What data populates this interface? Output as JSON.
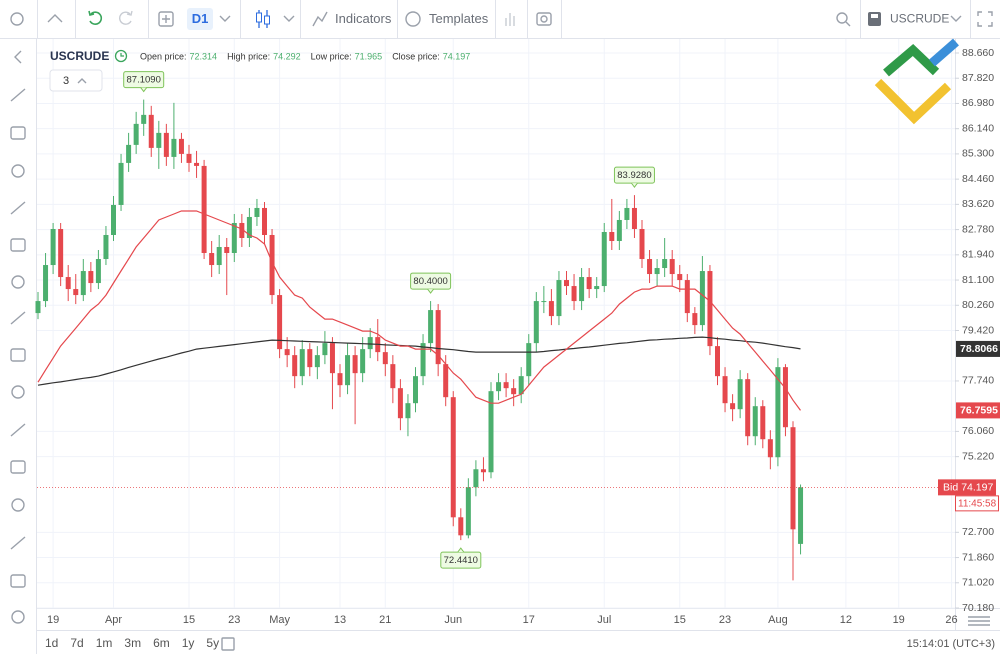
{
  "toolbar": {
    "timeframe": "D1",
    "indicators": "Indicators",
    "templates": "Templates",
    "symbol": "USCRUDE"
  },
  "footer": {
    "ranges": [
      "1d",
      "7d",
      "1m",
      "3m",
      "6m",
      "1y",
      "5y"
    ],
    "clock": "15:14:01 (UTC+3)"
  },
  "chart_data": {
    "type": "candlestick",
    "title": "USCRUDE",
    "depth": "3",
    "ohlc_labels": [
      "Open price:",
      "High price:",
      "Low price:",
      "Close price:"
    ],
    "up_color": "#4caf6e",
    "down_color": "#e5484d",
    "bid_label": "Bid",
    "countdown": "11:45:58",
    "ylim": [
      70.18,
      88.66
    ],
    "yticks": [
      {
        "value": 88.66,
        "label": "88.660"
      },
      {
        "value": 87.82,
        "label": "87.820"
      },
      {
        "value": 86.98,
        "label": "86.980"
      },
      {
        "value": 86.14,
        "label": "86.140"
      },
      {
        "value": 85.3,
        "label": "85.300"
      },
      {
        "value": 84.46,
        "label": "84.460"
      },
      {
        "value": 83.62,
        "label": "83.620"
      },
      {
        "value": 82.78,
        "label": "82.780"
      },
      {
        "value": 81.94,
        "label": "81.940"
      },
      {
        "value": 81.1,
        "label": "81.100"
      },
      {
        "value": 80.26,
        "label": "80.260"
      },
      {
        "value": 79.42,
        "label": "79.420"
      },
      {
        "value": 77.74,
        "label": "77.740"
      },
      {
        "value": 76.06,
        "label": "76.060"
      },
      {
        "value": 75.22,
        "label": "75.220"
      },
      {
        "value": 72.7,
        "label": "72.700"
      },
      {
        "value": 71.86,
        "label": "71.860"
      },
      {
        "value": 71.02,
        "label": "71.020"
      },
      {
        "value": 70.18,
        "label": "70.180"
      }
    ],
    "categories": [
      null,
      null,
      "19",
      null,
      null,
      null,
      null,
      null,
      null,
      null,
      "Apr",
      null,
      null,
      null,
      null,
      null,
      null,
      null,
      null,
      null,
      "15",
      null,
      null,
      null,
      null,
      null,
      "23",
      null,
      null,
      null,
      null,
      null,
      "May",
      null,
      null,
      null,
      null,
      null,
      null,
      null,
      "13",
      null,
      null,
      null,
      null,
      null,
      "21",
      null,
      null,
      null,
      null,
      null,
      null,
      null,
      null,
      "Jun",
      null,
      null,
      null,
      null,
      null,
      null,
      null,
      null,
      null,
      "17",
      null,
      null,
      null,
      null,
      null,
      null,
      null,
      null,
      null,
      "Jul",
      null,
      null,
      null,
      null,
      null,
      null,
      null,
      null,
      null,
      "15",
      null,
      null,
      null,
      null,
      null,
      "23",
      null,
      null,
      null,
      null,
      null,
      null,
      "Aug",
      null,
      null,
      null
    ],
    "future_categories": [
      "12",
      "19",
      "26"
    ],
    "candles": [
      [
        80.0,
        80.7,
        79.8,
        80.4
      ],
      [
        80.4,
        82.0,
        80.2,
        81.6
      ],
      [
        81.6,
        83.0,
        81.3,
        82.8
      ],
      [
        82.8,
        83.0,
        80.9,
        81.2
      ],
      [
        81.2,
        81.6,
        80.4,
        80.8
      ],
      [
        80.8,
        81.3,
        80.3,
        80.6
      ],
      [
        80.6,
        81.8,
        80.4,
        81.4
      ],
      [
        81.4,
        81.7,
        80.7,
        81.0
      ],
      [
        81.0,
        82.1,
        80.8,
        81.8
      ],
      [
        81.8,
        82.9,
        81.6,
        82.6
      ],
      [
        82.6,
        83.9,
        82.4,
        83.6
      ],
      [
        83.6,
        85.3,
        83.4,
        85.0
      ],
      [
        85.0,
        86.0,
        84.7,
        85.6
      ],
      [
        85.6,
        86.7,
        85.3,
        86.3
      ],
      [
        86.3,
        87.109,
        85.9,
        86.6
      ],
      [
        86.6,
        86.9,
        85.2,
        85.5
      ],
      [
        85.5,
        86.4,
        84.8,
        86.0
      ],
      [
        86.0,
        86.3,
        84.9,
        85.2
      ],
      [
        85.2,
        87.0,
        84.8,
        85.8
      ],
      [
        85.8,
        86.0,
        85.0,
        85.3
      ],
      [
        85.3,
        85.6,
        84.7,
        85.0
      ],
      [
        85.0,
        85.4,
        84.5,
        84.9
      ],
      [
        84.9,
        85.1,
        81.8,
        82.0
      ],
      [
        82.0,
        82.4,
        81.2,
        81.6
      ],
      [
        81.6,
        82.6,
        81.3,
        82.2
      ],
      [
        82.2,
        82.5,
        80.6,
        82.0
      ],
      [
        82.0,
        83.3,
        81.7,
        83.0
      ],
      [
        83.0,
        83.3,
        82.2,
        82.5
      ],
      [
        82.5,
        83.5,
        82.2,
        83.2
      ],
      [
        83.2,
        83.8,
        82.9,
        83.5
      ],
      [
        83.5,
        83.7,
        82.3,
        82.6
      ],
      [
        82.6,
        82.8,
        80.3,
        80.6
      ],
      [
        80.6,
        80.8,
        78.5,
        78.8
      ],
      [
        78.8,
        79.2,
        78.2,
        78.6
      ],
      [
        78.6,
        78.9,
        77.5,
        77.9
      ],
      [
        77.9,
        79.1,
        77.6,
        78.8
      ],
      [
        78.8,
        79.0,
        77.9,
        78.2
      ],
      [
        78.2,
        78.9,
        77.8,
        78.6
      ],
      [
        78.6,
        79.4,
        78.3,
        79.0
      ],
      [
        79.0,
        79.2,
        76.8,
        78.0
      ],
      [
        78.0,
        78.3,
        77.2,
        77.6
      ],
      [
        77.6,
        79.0,
        77.3,
        78.6
      ],
      [
        78.6,
        78.9,
        76.3,
        78.0
      ],
      [
        78.0,
        79.2,
        77.7,
        78.8
      ],
      [
        78.8,
        79.5,
        78.5,
        79.2
      ],
      [
        79.2,
        79.8,
        78.4,
        78.7
      ],
      [
        78.7,
        79.0,
        77.9,
        78.3
      ],
      [
        78.3,
        78.6,
        77.0,
        77.5
      ],
      [
        77.5,
        77.8,
        76.1,
        76.5
      ],
      [
        76.5,
        77.3,
        75.9,
        77.0
      ],
      [
        77.0,
        78.2,
        76.7,
        77.9
      ],
      [
        77.9,
        79.3,
        77.6,
        79.0
      ],
      [
        79.0,
        80.4,
        78.7,
        80.1
      ],
      [
        80.1,
        80.3,
        77.9,
        78.3
      ],
      [
        78.3,
        78.6,
        76.9,
        77.2
      ],
      [
        77.2,
        77.4,
        72.9,
        73.2
      ],
      [
        73.2,
        73.5,
        72.441,
        72.6
      ],
      [
        72.6,
        74.5,
        72.5,
        74.2
      ],
      [
        74.2,
        75.1,
        73.9,
        74.8
      ],
      [
        74.8,
        75.2,
        74.4,
        74.7
      ],
      [
        74.7,
        77.7,
        74.5,
        77.4
      ],
      [
        77.4,
        78.0,
        77.1,
        77.7
      ],
      [
        77.7,
        78.0,
        77.2,
        77.5
      ],
      [
        77.5,
        77.8,
        76.9,
        77.3
      ],
      [
        77.3,
        78.2,
        77.0,
        77.9
      ],
      [
        77.9,
        79.3,
        77.6,
        79.0
      ],
      [
        79.0,
        80.7,
        78.7,
        80.4
      ],
      [
        80.4,
        80.9,
        80.0,
        80.4
      ],
      [
        80.4,
        80.8,
        79.6,
        79.9
      ],
      [
        79.9,
        81.4,
        79.6,
        81.1
      ],
      [
        81.1,
        81.4,
        80.6,
        80.9
      ],
      [
        80.9,
        81.3,
        80.1,
        80.4
      ],
      [
        80.4,
        81.5,
        80.1,
        81.2
      ],
      [
        81.2,
        81.5,
        80.5,
        80.8
      ],
      [
        80.8,
        81.2,
        80.5,
        80.9
      ],
      [
        80.9,
        83.0,
        80.7,
        82.7
      ],
      [
        82.7,
        83.8,
        82.1,
        82.4
      ],
      [
        82.4,
        83.4,
        82.1,
        83.1
      ],
      [
        83.1,
        83.8,
        82.8,
        83.5
      ],
      [
        83.5,
        83.928,
        82.5,
        82.8
      ],
      [
        82.8,
        83.1,
        81.5,
        81.8
      ],
      [
        81.8,
        82.1,
        81.0,
        81.3
      ],
      [
        81.3,
        81.8,
        80.9,
        81.5
      ],
      [
        81.5,
        82.5,
        81.2,
        81.8
      ],
      [
        81.8,
        82.1,
        80.9,
        81.3
      ],
      [
        81.3,
        81.6,
        80.7,
        81.1
      ],
      [
        81.1,
        81.3,
        79.7,
        80.0
      ],
      [
        80.0,
        80.2,
        79.3,
        79.6
      ],
      [
        79.6,
        81.9,
        79.4,
        81.4
      ],
      [
        81.4,
        81.6,
        78.6,
        78.9
      ],
      [
        78.9,
        79.2,
        77.6,
        77.9
      ],
      [
        77.9,
        78.2,
        76.7,
        77.0
      ],
      [
        77.0,
        77.3,
        76.4,
        76.8
      ],
      [
        76.8,
        78.1,
        76.5,
        77.8
      ],
      [
        77.8,
        78.0,
        75.6,
        75.9
      ],
      [
        75.9,
        77.2,
        75.6,
        76.9
      ],
      [
        76.9,
        77.1,
        75.5,
        75.8
      ],
      [
        75.8,
        76.1,
        74.8,
        75.2
      ],
      [
        75.2,
        78.5,
        74.9,
        78.2
      ],
      [
        78.2,
        78.3,
        75.9,
        76.2
      ],
      [
        76.2,
        76.4,
        71.1,
        72.8
      ],
      [
        72.314,
        74.292,
        71.965,
        74.197
      ]
    ],
    "series": [
      {
        "color": "#333333",
        "values": [
          77.6,
          77.64,
          77.68,
          77.71,
          77.75,
          77.79,
          77.83,
          77.86,
          77.9,
          77.97,
          78.04,
          78.11,
          78.19,
          78.26,
          78.33,
          78.4,
          78.47,
          78.53,
          78.6,
          78.67,
          78.73,
          78.8,
          78.83,
          78.86,
          78.89,
          78.92,
          78.95,
          78.98,
          79.01,
          79.04,
          79.07,
          79.1,
          79.09,
          79.08,
          79.07,
          79.06,
          79.05,
          79.04,
          79.03,
          79.02,
          79.01,
          79.0,
          78.99,
          78.98,
          78.97,
          78.96,
          78.94,
          78.93,
          78.92,
          78.91,
          78.9,
          78.87,
          78.85,
          78.82,
          78.8,
          78.78,
          78.75,
          78.72,
          78.7,
          78.7,
          78.7,
          78.7,
          78.7,
          78.7,
          78.7,
          78.7,
          78.7,
          78.72,
          78.75,
          78.77,
          78.8,
          78.82,
          78.85,
          78.87,
          78.9,
          78.93,
          78.96,
          78.99,
          79.01,
          79.04,
          79.07,
          79.1,
          79.11,
          79.13,
          79.14,
          79.16,
          79.17,
          79.19,
          79.2,
          79.18,
          79.15,
          79.13,
          79.1,
          79.08,
          79.05,
          79.03,
          79.0,
          78.96,
          78.92,
          78.88,
          78.85,
          78.8066
        ]
      },
      {
        "color": "#e5484d",
        "values": [
          77.7,
          78.1,
          78.5,
          78.9,
          79.2,
          79.5,
          79.8,
          80.1,
          80.3,
          80.6,
          81.0,
          81.4,
          81.8,
          82.2,
          82.5,
          82.8,
          83.1,
          83.2,
          83.3,
          83.4,
          83.4,
          83.4,
          83.3,
          83.2,
          83.1,
          83.0,
          82.9,
          82.8,
          82.6,
          82.5,
          82.3,
          81.7,
          81.2,
          80.9,
          80.6,
          80.5,
          80.2,
          80.0,
          79.8,
          79.8,
          79.7,
          79.6,
          79.5,
          79.4,
          79.4,
          79.3,
          79.1,
          79.0,
          78.9,
          78.9,
          78.8,
          78.8,
          78.8,
          78.6,
          78.3,
          78.0,
          77.8,
          77.5,
          77.2,
          77.1,
          77.0,
          77.0,
          77.1,
          77.2,
          77.3,
          77.6,
          77.9,
          78.2,
          78.4,
          78.6,
          78.8,
          79.0,
          79.2,
          79.4,
          79.6,
          79.8,
          80.0,
          80.3,
          80.5,
          80.7,
          80.8,
          80.8,
          80.9,
          80.9,
          80.9,
          80.8,
          80.8,
          80.8,
          80.6,
          80.4,
          80.1,
          79.8,
          79.5,
          79.3,
          79.0,
          78.7,
          78.4,
          78.1,
          77.8,
          77.5,
          77.1,
          76.7595
        ]
      }
    ],
    "annotations": [
      {
        "label": "87.1090",
        "at": "chart_data.candles.14.1"
      },
      {
        "label": "80.4000",
        "at": "chart_data.candles.52.1"
      },
      {
        "label": "72.4410",
        "at": "chart_data.candles.56.2"
      },
      {
        "label": "83.9280",
        "at": "chart_data.candles.79.1"
      }
    ],
    "grid": true
  }
}
